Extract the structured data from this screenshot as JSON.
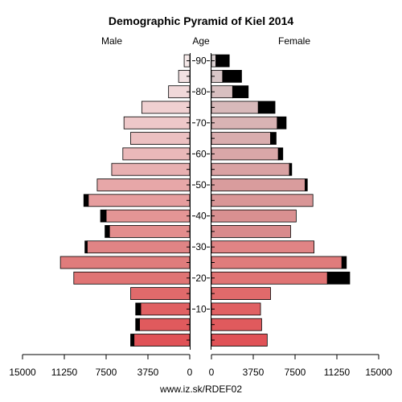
{
  "chart_data": {
    "type": "bar",
    "title": "Demographic Pyramid of Kiel 2014",
    "left_label": "Male",
    "center_label": "Age",
    "right_label": "Female",
    "footer": "www.iz.sk/RDEF02",
    "x_max": 15000,
    "x_ticks_male": [
      "15000",
      "11250",
      "7500",
      "3750",
      "0"
    ],
    "x_ticks_female": [
      "0",
      "3750",
      "7500",
      "11250",
      "15000"
    ],
    "x_tick_values": [
      15000,
      11250,
      7500,
      3750,
      0
    ],
    "age_tick_labels": [
      "10",
      "20",
      "30",
      "40",
      "50",
      "60",
      "70",
      "80",
      "90"
    ],
    "age_tick_bins": [
      2,
      4,
      6,
      8,
      10,
      12,
      14,
      16,
      18
    ],
    "bins": [
      "0-4",
      "5-9",
      "10-14",
      "15-19",
      "20-24",
      "25-29",
      "30-34",
      "35-39",
      "40-44",
      "45-49",
      "50-54",
      "55-59",
      "60-64",
      "65-69",
      "70-74",
      "75-79",
      "80-84",
      "85-89",
      "90+"
    ],
    "series": [
      {
        "name": "Male",
        "values": [
          5000,
          4500,
          4400,
          5300,
          10400,
          11600,
          9200,
          7200,
          7500,
          9100,
          8300,
          7000,
          6000,
          5300,
          5900,
          4300,
          1900,
          1000,
          500
        ],
        "extra": [
          300,
          350,
          450,
          0,
          0,
          0,
          200,
          400,
          500,
          400,
          0,
          0,
          0,
          0,
          0,
          0,
          0,
          0,
          0
        ]
      },
      {
        "name": "Female",
        "values": [
          5000,
          4500,
          4400,
          5300,
          10400,
          11700,
          9200,
          7100,
          7600,
          9100,
          8400,
          7000,
          6000,
          5300,
          5900,
          4200,
          1900,
          1000,
          400
        ],
        "extra": [
          0,
          0,
          0,
          0,
          2000,
          400,
          0,
          0,
          0,
          0,
          200,
          200,
          400,
          500,
          800,
          1500,
          1400,
          1700,
          1200
        ]
      }
    ],
    "male_colors": [
      "#e05257",
      "#e05a5d",
      "#e06163",
      "#e06a6b",
      "#e07474",
      "#e07c7c",
      "#e08485",
      "#e38d8d",
      "#e49595",
      "#e69d9e",
      "#e7a7a8",
      "#e8b0b1",
      "#eab8b9",
      "#ecc0c1",
      "#eec8c9",
      "#f0d0d1",
      "#f1d8d9",
      "#f2e0e1",
      "#f4e8e8"
    ],
    "female_colors": [
      "#e05257",
      "#e05a5d",
      "#e06163",
      "#e06a6b",
      "#e07474",
      "#e07c7c",
      "#e08485",
      "#d98a8c",
      "#d99091",
      "#d99697",
      "#d99c9d",
      "#d9a2a3",
      "#d9a7a8",
      "#d9adae",
      "#d9b3b4",
      "#d8b9ba",
      "#d8bfc0",
      "#d9c7c8",
      "#dad0d1"
    ],
    "extra_color": "#000000"
  }
}
